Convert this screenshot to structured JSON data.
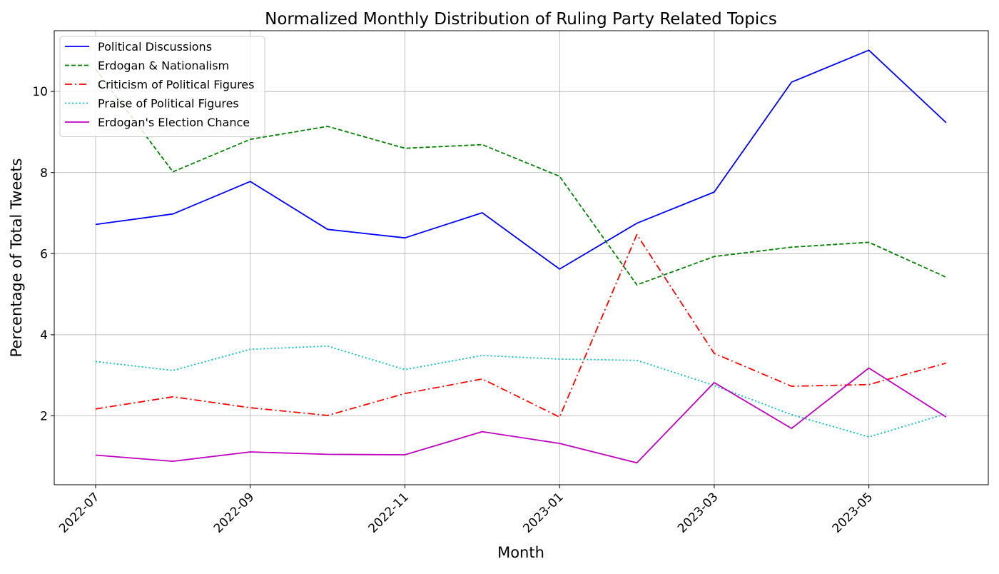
{
  "chart_data": {
    "type": "line",
    "title": "Normalized Monthly Distribution of Ruling Party Related Topics",
    "xlabel": "Month",
    "ylabel": "Percentage of Total Tweets",
    "x": [
      "2022-07",
      "2022-08",
      "2022-09",
      "2022-10",
      "2022-11",
      "2022-12",
      "2023-01",
      "2023-02",
      "2023-03",
      "2023-04",
      "2023-05",
      "2023-06"
    ],
    "x_tick_labels": [
      "2022-07",
      "2022-09",
      "2022-11",
      "2023-01",
      "2023-03",
      "2023-05"
    ],
    "y_ticks": [
      2,
      4,
      6,
      8,
      10
    ],
    "ylim": [
      0.3,
      11.5
    ],
    "grid": true,
    "legend_position": "top-left",
    "series": [
      {
        "name": "Political Discussions",
        "color": "#0000ff",
        "style": "solid",
        "values": [
          6.72,
          6.98,
          7.78,
          6.6,
          6.39,
          7.01,
          5.62,
          6.75,
          7.52,
          10.23,
          11.02,
          9.23
        ]
      },
      {
        "name": "Erdogan & Nationalism",
        "color": "#008000",
        "style": "dashed",
        "values": [
          10.55,
          8.02,
          8.82,
          9.14,
          8.6,
          8.69,
          7.91,
          5.23,
          5.93,
          6.16,
          6.28,
          5.42
        ]
      },
      {
        "name": "Criticism of Political Figures",
        "color": "#ff0000",
        "style": "dashdot",
        "values": [
          2.17,
          2.47,
          2.2,
          2.01,
          2.55,
          2.91,
          1.97,
          6.47,
          3.54,
          2.73,
          2.77,
          3.3
        ]
      },
      {
        "name": "Praise of Political Figures",
        "color": "#00bfbf",
        "style": "dotted",
        "values": [
          3.34,
          3.12,
          3.64,
          3.72,
          3.14,
          3.49,
          3.4,
          3.37,
          2.75,
          2.03,
          1.48,
          2.05
        ]
      },
      {
        "name": "Erdogan's Election Chance",
        "color": "#bf00bf",
        "style": "solid",
        "values": [
          1.03,
          0.88,
          1.11,
          1.05,
          1.04,
          1.61,
          1.32,
          0.84,
          2.82,
          1.69,
          3.18,
          1.97
        ]
      }
    ]
  }
}
